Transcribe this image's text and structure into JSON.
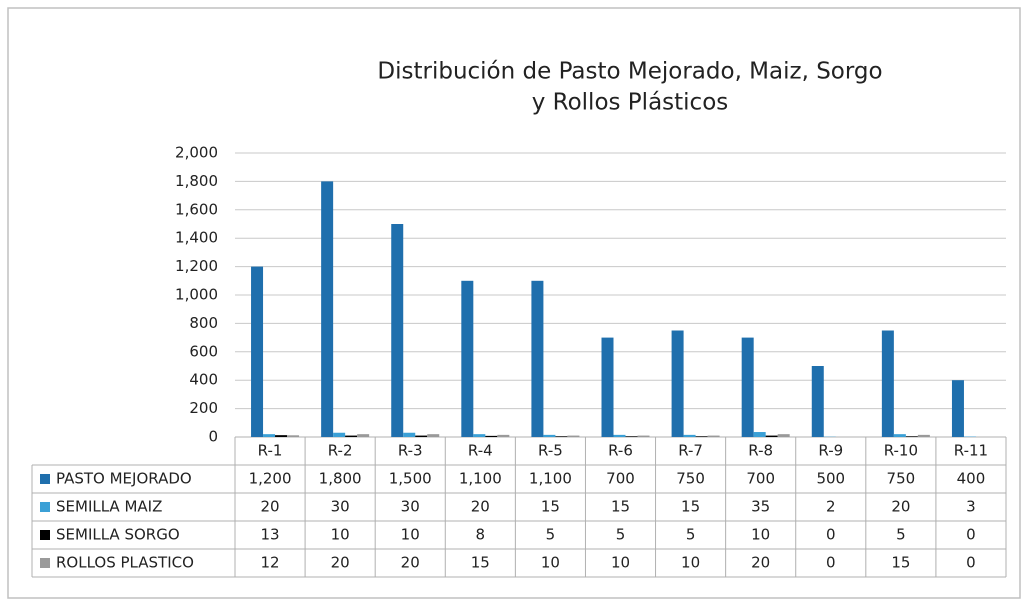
{
  "chart_data": {
    "type": "bar",
    "title": "Distribución de Pasto Mejorado, Maiz, Sorgo",
    "subtitle": "y Rollos Plásticos",
    "categories": [
      "R-1",
      "R-2",
      "R-3",
      "R-4",
      "R-5",
      "R-6",
      "R-7",
      "R-8",
      "R-9",
      "R-10",
      "R-11"
    ],
    "series": [
      {
        "name": "PASTO MEJORADO",
        "color": "#1f6fad",
        "values": [
          1200,
          1800,
          1500,
          1100,
          1100,
          700,
          750,
          700,
          500,
          750,
          400
        ],
        "value_labels": [
          "1,200",
          "1,800",
          "1,500",
          "1,100",
          "1,100",
          "700",
          "750",
          "700",
          "500",
          "750",
          "400"
        ]
      },
      {
        "name": "SEMILLA MAIZ",
        "color": "#3ba0d6",
        "values": [
          20,
          30,
          30,
          20,
          15,
          15,
          15,
          35,
          2,
          20,
          3
        ]
      },
      {
        "name": "SEMILLA SORGO",
        "color": "#000000",
        "values": [
          13,
          10,
          10,
          8,
          5,
          5,
          5,
          10,
          0,
          5,
          0
        ]
      },
      {
        "name": "ROLLOS PLASTICO",
        "color": "#9a9a9a",
        "values": [
          12,
          20,
          20,
          15,
          10,
          10,
          10,
          20,
          0,
          15,
          0
        ]
      }
    ],
    "ylim": [
      0,
      2000
    ],
    "yticks": [
      0,
      200,
      400,
      600,
      800,
      {
        "value": 1000,
        "label": "1,000"
      },
      {
        "value": 1200,
        "label": "1,200"
      },
      {
        "value": 1400,
        "label": "1,400"
      },
      {
        "value": 1600,
        "label": "1,600"
      },
      {
        "value": 1800,
        "label": "1,800"
      },
      {
        "value": 2000,
        "label": "2,000"
      }
    ],
    "grid": true
  }
}
